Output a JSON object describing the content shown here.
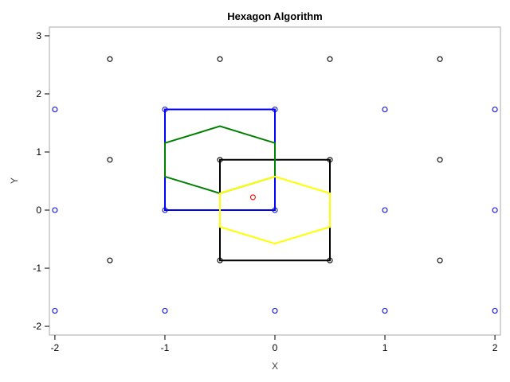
{
  "chart_data": {
    "type": "scatter",
    "title": "Hexagon Algorithm",
    "xlabel": "X",
    "ylabel": "Y",
    "xlim": [
      -2.05,
      2.05
    ],
    "ylim": [
      -2.15,
      3.15
    ],
    "xticks": [
      -2,
      -1,
      0,
      1,
      2
    ],
    "yticks": [
      -2,
      -1,
      0,
      1,
      2,
      3
    ],
    "xtick_labels": [
      "-2",
      "-1",
      "0",
      "1",
      "2"
    ],
    "ytick_labels": [
      "-2",
      "-1",
      "0",
      "1",
      "2",
      "3"
    ],
    "grid": false,
    "legend": "none",
    "series": [
      {
        "marker": "circle",
        "color": "#000000",
        "points": [
          [
            -1.5,
            2.598
          ],
          [
            -0.5,
            2.598
          ],
          [
            0.5,
            2.598
          ],
          [
            1.5,
            2.598
          ],
          [
            -1.5,
            0.866
          ],
          [
            -0.5,
            0.866
          ],
          [
            0.5,
            0.866
          ],
          [
            1.5,
            0.866
          ],
          [
            -1.5,
            -0.866
          ],
          [
            -0.5,
            -0.866
          ],
          [
            0.5,
            -0.866
          ],
          [
            1.5,
            -0.866
          ]
        ]
      },
      {
        "marker": "circle",
        "color": "#0000ff",
        "points": [
          [
            -2,
            1.732
          ],
          [
            -1,
            1.732
          ],
          [
            0,
            1.732
          ],
          [
            1,
            1.732
          ],
          [
            2,
            1.732
          ],
          [
            -2,
            0
          ],
          [
            -1,
            0
          ],
          [
            0,
            0
          ],
          [
            1,
            0
          ],
          [
            2,
            0
          ],
          [
            -2,
            -1.732
          ],
          [
            -1,
            -1.732
          ],
          [
            0,
            -1.732
          ],
          [
            1,
            -1.732
          ],
          [
            2,
            -1.732
          ]
        ]
      },
      {
        "marker": "circle",
        "color": "#ff0000",
        "points": [
          [
            -0.2,
            0.22
          ]
        ]
      }
    ],
    "polygons": [
      {
        "color": "#0000ff",
        "points": [
          [
            -1,
            0
          ],
          [
            0,
            0
          ],
          [
            0,
            1.732
          ],
          [
            -1,
            1.732
          ]
        ]
      },
      {
        "color": "#000000",
        "points": [
          [
            -0.5,
            -0.866
          ],
          [
            0.5,
            -0.866
          ],
          [
            0.5,
            0.866
          ],
          [
            -0.5,
            0.866
          ]
        ]
      },
      {
        "color": "#008000",
        "points": [
          [
            -1,
            0.577
          ],
          [
            -1,
            1.155
          ],
          [
            -0.5,
            1.443
          ],
          [
            0,
            1.155
          ],
          [
            0,
            0.577
          ],
          [
            -0.5,
            0.289
          ]
        ]
      },
      {
        "color": "#ffff00",
        "points": [
          [
            -0.5,
            0.289
          ],
          [
            -0.5,
            -0.289
          ],
          [
            0,
            -0.577
          ],
          [
            0.5,
            -0.289
          ],
          [
            0.5,
            0.289
          ],
          [
            0,
            0.577
          ]
        ]
      }
    ]
  }
}
